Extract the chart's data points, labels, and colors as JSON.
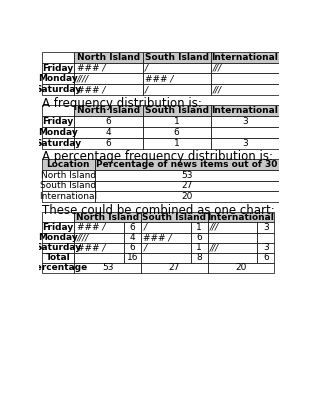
{
  "tally_table": {
    "headers": [
      "",
      "North Island",
      "South Island",
      "International"
    ],
    "rows": [
      [
        "Friday",
        "### /",
        "/",
        "///"
      ],
      [
        "Monday",
        "////",
        "### /",
        ""
      ],
      [
        "Saturday",
        "### /",
        "/",
        "///"
      ]
    ]
  },
  "freq_label": "A frequency distribution is:",
  "freq_table": {
    "headers": [
      "",
      "North Island",
      "South Island",
      "International"
    ],
    "rows": [
      [
        "Friday",
        "6",
        "1",
        "3"
      ],
      [
        "Monday",
        "4",
        "6",
        ""
      ],
      [
        "Saturday",
        "6",
        "1",
        "3"
      ]
    ]
  },
  "pct_label": "A percentage frequency distribution is:",
  "pct_table": {
    "headers": [
      "Location",
      "Percentage of news items out of 30"
    ],
    "rows": [
      [
        "North Island",
        "53"
      ],
      [
        "South Island",
        "27"
      ],
      [
        "International",
        "20"
      ]
    ]
  },
  "combined_label": "These could be combined as one chart:",
  "combined_table": {
    "rows": [
      [
        "Friday",
        "### /",
        "6",
        "/",
        "1",
        "///",
        "3"
      ],
      [
        "Monday",
        "////",
        "4",
        "### /",
        "6",
        "",
        ""
      ],
      [
        "Saturday",
        "### /",
        "6",
        "/",
        "1",
        "///",
        "3"
      ],
      [
        "Total",
        "",
        "16",
        "",
        "8",
        "",
        "6"
      ],
      [
        "Percentage",
        "53",
        "",
        "27",
        "",
        "20",
        ""
      ]
    ]
  },
  "font_size": 6.5,
  "label_font_size": 8.5,
  "header_bg": "#c8c8c8",
  "cell_bg": "#ffffff"
}
